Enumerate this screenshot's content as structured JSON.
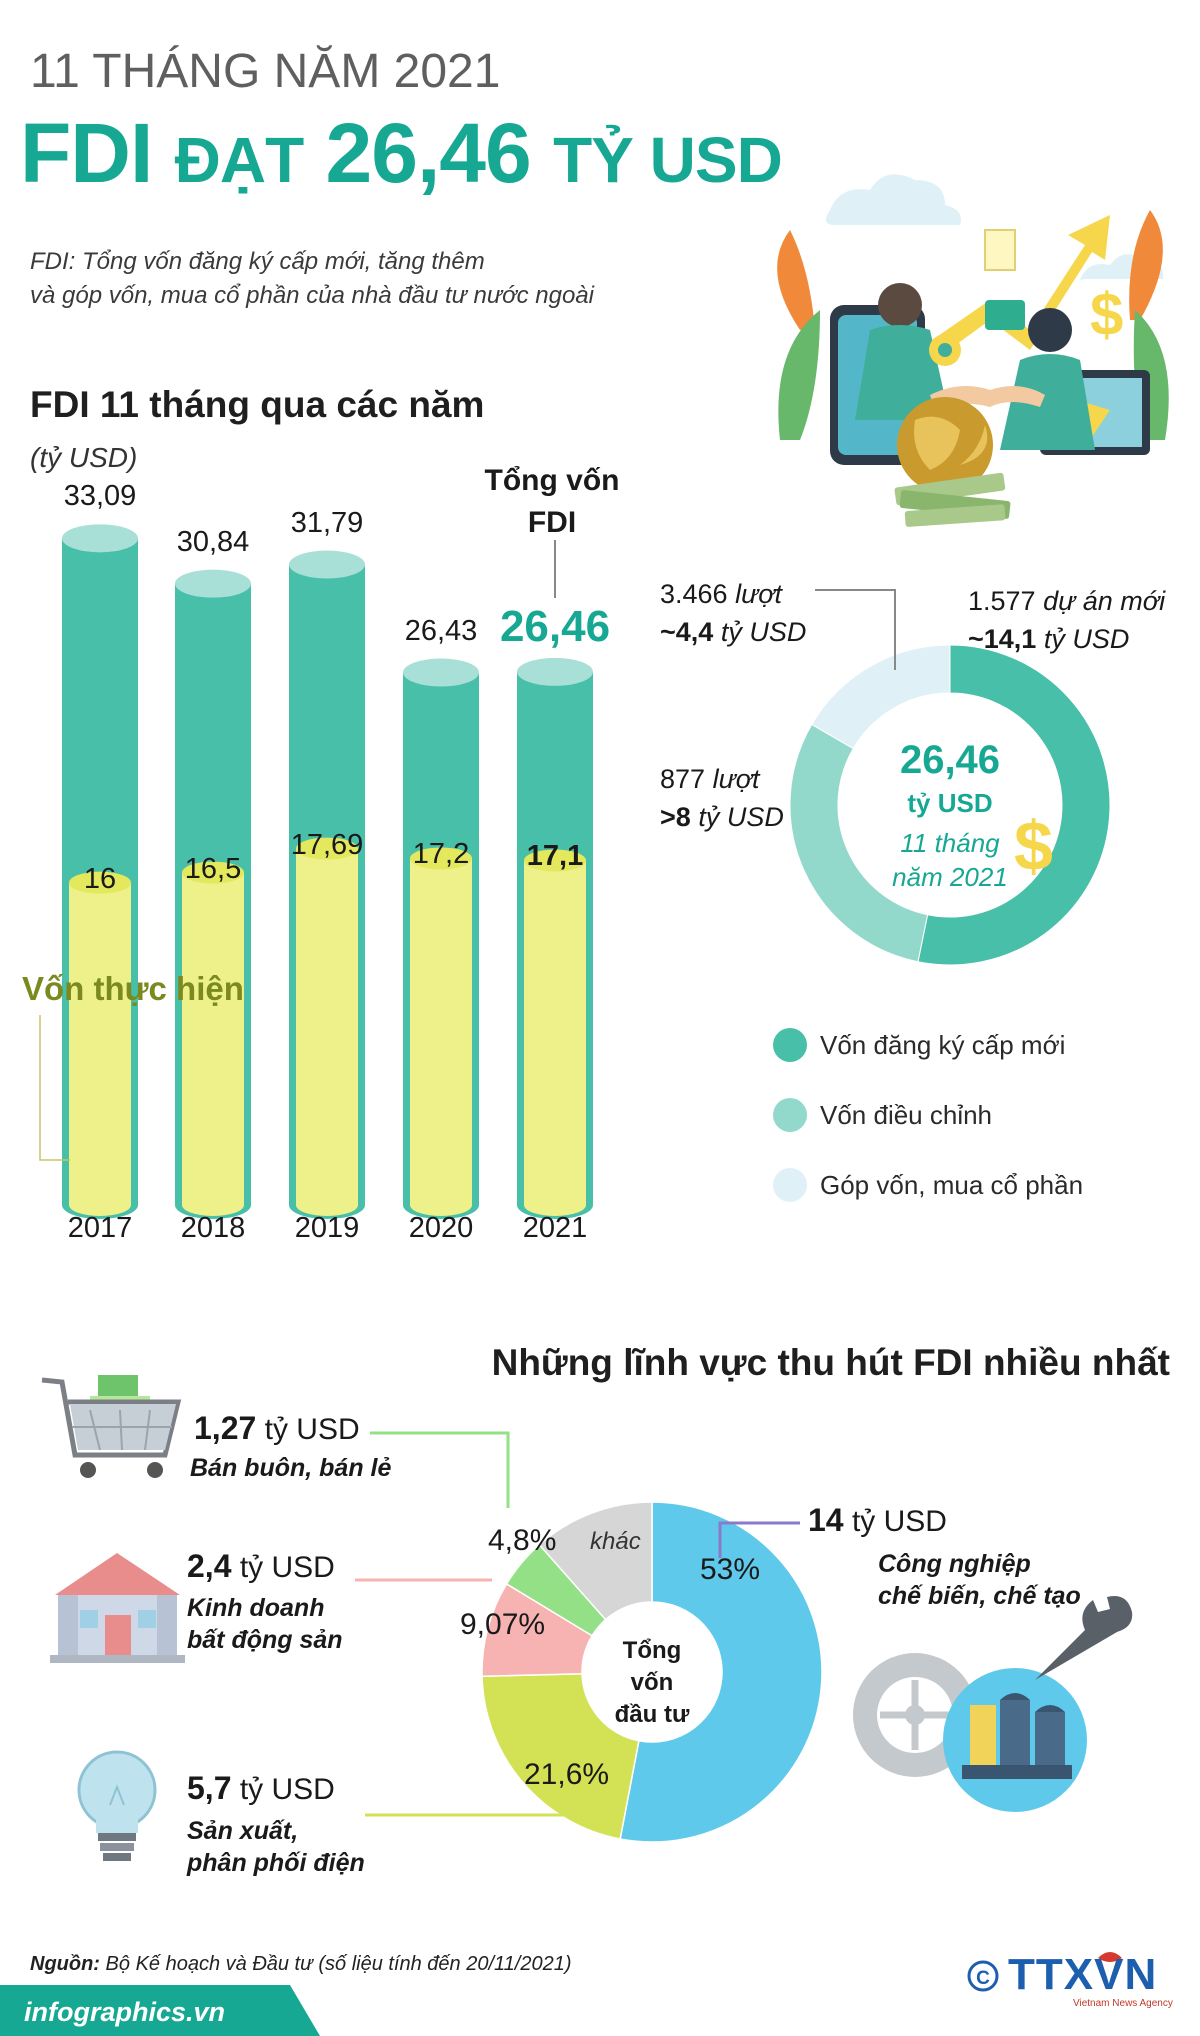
{
  "header": {
    "supertitle": "11 THÁNG NĂM 2021",
    "title_fdi": "FDI",
    "title_mid": "ĐẠT",
    "title_value": "26,46",
    "title_unit": "TỶ USD",
    "definition_line1": "FDI: Tổng vốn đăng ký cấp mới, tăng thêm",
    "definition_line2": "và góp vốn, mua cổ phần của nhà đầu tư nước ngoài"
  },
  "colors": {
    "teal": "#47bfa9",
    "teal_dark": "#17a894",
    "yellow": "#eef08a",
    "blue": "#5ec9ea",
    "green": "#d3e254",
    "pink": "#f6b3b1",
    "gray": "#d6d6d6",
    "legend_green": "#93e087"
  },
  "chart_data": [
    {
      "type": "bar",
      "title": "FDI 11 tháng qua các năm",
      "unit_label": "(tỷ USD)",
      "categories": [
        "2017",
        "2018",
        "2019",
        "2020",
        "2021"
      ],
      "series": [
        {
          "name": "Tổng vốn FDI",
          "values": [
            33.09,
            30.84,
            31.79,
            26.43,
            26.46
          ],
          "labels": [
            "33,09",
            "30,84",
            "31,79",
            "26,43",
            "26,46"
          ]
        },
        {
          "name": "Vốn thực hiện",
          "values": [
            16,
            16.5,
            17.69,
            17.2,
            17.1
          ],
          "labels": [
            "16",
            "16,5",
            "17,69",
            "17,2",
            "17,1"
          ]
        }
      ],
      "total_label_line1": "Tổng vốn",
      "total_label_line2": "FDI",
      "ylim": [
        0,
        34
      ]
    },
    {
      "type": "pie",
      "center_value": "26,46",
      "center_unit": "tỷ USD",
      "center_period_line1": "11 tháng",
      "center_period_line2": "năm 2021",
      "slices": [
        {
          "name": "Vốn đăng ký cấp mới",
          "value": 14.1,
          "count": "1.577",
          "count_unit": "dự án mới",
          "amount": "~14,1",
          "amount_unit": "tỷ USD"
        },
        {
          "name": "Vốn điều chỉnh",
          "value": 8.0,
          "count": "877",
          "count_unit": "lượt",
          "amount": ">8",
          "amount_unit": "tỷ USD"
        },
        {
          "name": "Góp vốn, mua cổ phần",
          "value": 4.4,
          "count": "3.466",
          "count_unit": "lượt",
          "amount": "~4,4",
          "amount_unit": "tỷ USD"
        }
      ]
    },
    {
      "type": "pie",
      "title": "Những lĩnh vực thu hút FDI nhiều nhất",
      "center_line1": "Tổng",
      "center_line2": "vốn",
      "center_line3": "đầu tư",
      "slices": [
        {
          "name": "Công nghiệp chế biến, chế tạo",
          "name_line1": "Công nghiệp",
          "name_line2": "chế biến, chế tạo",
          "value": 53,
          "pct_label": "53%",
          "amount": "14",
          "amount_unit": "tỷ USD"
        },
        {
          "name": "Sản xuất, phân phối điện",
          "name_line1": "Sản xuất,",
          "name_line2": "phân phối điện",
          "value": 21.6,
          "pct_label": "21,6%",
          "amount": "5,7",
          "amount_unit": "tỷ USD"
        },
        {
          "name": "Kinh doanh bất động sản",
          "name_line1": "Kinh doanh",
          "name_line2": "bất động sản",
          "value": 9.07,
          "pct_label": "9,07%",
          "amount": "2,4",
          "amount_unit": "tỷ USD"
        },
        {
          "name": "Bán buôn, bán lẻ",
          "name_line1": "Bán buôn, bán lẻ",
          "value": 4.8,
          "pct_label": "4,8%",
          "amount": "1,27",
          "amount_unit": "tỷ USD"
        },
        {
          "name": "khác",
          "value": 11.53,
          "pct_label": "khác"
        }
      ]
    }
  ],
  "icons": {
    "illustration": "business-handshake-illustration",
    "cart": "shopping-cart-icon",
    "house": "house-icon",
    "bulb": "light-bulb-icon",
    "factory": "factory-gear-icon",
    "copyright": "copyright-icon"
  },
  "footer": {
    "source_label": "Nguồn:",
    "source_text": "Bộ Kế hoạch và Đầu tư (số liệu tính đến 20/11/2021)",
    "website": "infographics.vn",
    "brand": "TTXVN",
    "brand_sub": "Vietnam News Agency"
  }
}
